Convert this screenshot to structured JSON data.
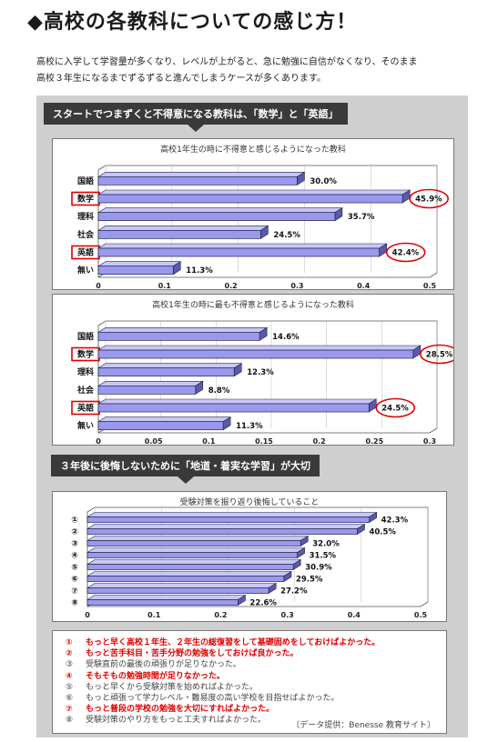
{
  "title": "◆高校の各教科についての感じ方！",
  "intro": {
    "line1": "高校に入学して学習量が多くなり、レベルが上がると、急に勉強に自信がなくなり、そのまま",
    "line2": "高校３年生になるまでずるずると進んでしまうケースが多くあります。"
  },
  "banner1": "スタートでつまずくと不得意になる教科は、「数学」と「英語」",
  "banner2": "３年後に後悔しないために「地道・着実な学習」が大切",
  "colors": {
    "bar": "#9a99ee",
    "bar_dark": "#22224a",
    "highlight": "#e00000"
  },
  "chart_data": [
    {
      "type": "bar",
      "title": "高校1年生の時に不得意と感じるようになった教科",
      "categories": [
        "国語",
        "数学",
        "理科",
        "社会",
        "英語",
        "無い"
      ],
      "values": [
        0.3,
        0.459,
        0.357,
        0.245,
        0.424,
        0.113
      ],
      "data_labels": [
        "30.0%",
        "45.9%",
        "35.7%",
        "24.5%",
        "42.4%",
        "11.3%"
      ],
      "highlighted": [
        "数学",
        "英語"
      ],
      "xlim": [
        0,
        0.5
      ],
      "ticks": [
        "0",
        "0.1",
        "0.2",
        "0.3",
        "0.4",
        "0.5"
      ]
    },
    {
      "type": "bar",
      "title": "高校1年生の時に最も不得意と感じるようになった教科",
      "categories": [
        "国語",
        "数学",
        "理科",
        "社会",
        "英語",
        "無い"
      ],
      "values": [
        0.146,
        0.285,
        0.123,
        0.088,
        0.245,
        0.113
      ],
      "data_labels": [
        "14.6%",
        "28.5%",
        "12.3%",
        "8.8%",
        "24.5%",
        "11.3%"
      ],
      "highlighted": [
        "数学",
        "英語"
      ],
      "xlim": [
        0,
        0.3
      ],
      "ticks": [
        "0",
        "0.05",
        "0.1",
        "0.15",
        "0.2",
        "0.25",
        "0.3"
      ]
    },
    {
      "type": "bar",
      "title": "受験対策を振り返り後悔していること",
      "categories": [
        "①",
        "②",
        "③",
        "④",
        "⑤",
        "⑥",
        "⑦",
        "⑧"
      ],
      "values": [
        0.423,
        0.405,
        0.32,
        0.315,
        0.309,
        0.295,
        0.272,
        0.226
      ],
      "data_labels": [
        "42.3%",
        "40.5%",
        "32.0%",
        "31.5%",
        "30.9%",
        "29.5%",
        "27.2%",
        "22.6%"
      ],
      "xlim": [
        0,
        0.5
      ],
      "ticks": [
        "0",
        "0.1",
        "0.2",
        "0.3",
        "0.4",
        "0.5"
      ]
    }
  ],
  "legend": [
    {
      "num": "①",
      "text": "もっと早く高校１年生、２年生の総復習をして基礎固めをしておけばよかった。",
      "style": "red"
    },
    {
      "num": "②",
      "text": "もっと苦手科目・苦手分野の勉強をしておけば良かった。",
      "style": "red"
    },
    {
      "num": "③",
      "text": "受験直前の最後の頑張りが足りなかった。",
      "style": "gray"
    },
    {
      "num": "④",
      "text": "そもそもの勉強時間が足りなかった。",
      "style": "red"
    },
    {
      "num": "⑤",
      "text": "もっと早くから受験対策を始めればよかった。",
      "style": "gray"
    },
    {
      "num": "⑥",
      "text": "もっと頑張って学力レベル・難易度の高い学校を目指せばよかった。",
      "style": "gray"
    },
    {
      "num": "⑦",
      "text": "もっと普段の学校の勉強を大切にすればよかった。",
      "style": "red"
    },
    {
      "num": "⑧",
      "text": "受験対策のやり方をもっと工夫すればよかった。",
      "style": "gray"
    }
  ],
  "source": "〔データ提供：Benesse 教育サイト〕"
}
